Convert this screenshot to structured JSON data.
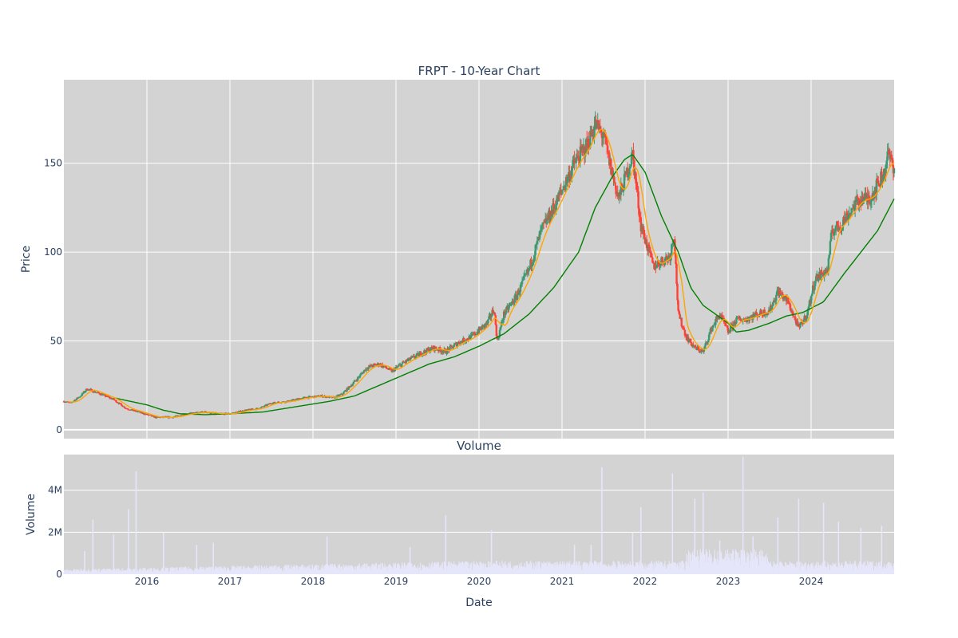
{
  "colors": {
    "plot_bg": "#d3d3d3",
    "grid": "#ffffff",
    "text": "#2a3f5f",
    "up_candle": "#3d9970",
    "down_candle": "#ff4136",
    "ma_short": "#ffa500",
    "ma_long": "#008000",
    "volume_bar": "#e6e6fa"
  },
  "chart_data": [
    {
      "type": "line",
      "chart_kind": "candlestick",
      "title": "FRPT - 10-Year Chart",
      "ylabel": "Price",
      "xlabel": "",
      "x_range": [
        2015.0,
        2025.0
      ],
      "ylim": [
        -5,
        197
      ],
      "y_ticks": [
        0,
        50,
        100,
        150
      ],
      "x_ticks": [
        "2016",
        "2017",
        "2018",
        "2019",
        "2020",
        "2021",
        "2022",
        "2023",
        "2024"
      ],
      "x_tick_values": [
        2016,
        2017,
        2018,
        2019,
        2020,
        2021,
        2022,
        2023,
        2024
      ],
      "grid": true,
      "legend": "none",
      "price_anchors": {
        "x": [
          2015.0,
          2015.08,
          2015.2,
          2015.28,
          2015.45,
          2015.6,
          2015.75,
          2015.9,
          2016.1,
          2016.3,
          2016.5,
          2016.7,
          2016.85,
          2017.0,
          2017.2,
          2017.35,
          2017.5,
          2017.7,
          2017.9,
          2018.1,
          2018.25,
          2018.35,
          2018.5,
          2018.65,
          2018.8,
          2018.95,
          2019.1,
          2019.3,
          2019.45,
          2019.6,
          2019.75,
          2019.9,
          2020.1,
          2020.18,
          2020.22,
          2020.3,
          2020.45,
          2020.6,
          2020.75,
          2020.9,
          2021.05,
          2021.15,
          2021.3,
          2021.4,
          2021.5,
          2021.6,
          2021.68,
          2021.75,
          2021.85,
          2021.95,
          2022.1,
          2022.2,
          2022.3,
          2022.35,
          2022.4,
          2022.5,
          2022.6,
          2022.7,
          2022.8,
          2022.9,
          2023.0,
          2023.1,
          2023.2,
          2023.35,
          2023.5,
          2023.6,
          2023.72,
          2023.85,
          2023.95,
          2024.05,
          2024.2,
          2024.25,
          2024.35,
          2024.5,
          2024.6,
          2024.7,
          2024.8,
          2024.88,
          2024.92,
          2025.0
        ],
        "y": [
          16,
          15,
          19,
          23,
          20,
          17,
          12,
          10,
          7,
          7,
          9,
          10,
          9,
          9,
          11,
          12,
          15,
          16,
          18,
          19,
          18,
          20,
          27,
          35,
          37,
          33,
          38,
          43,
          46,
          44,
          49,
          52,
          60,
          68,
          50,
          65,
          75,
          90,
          112,
          125,
          140,
          150,
          160,
          172,
          165,
          145,
          130,
          140,
          155,
          115,
          92,
          95,
          98,
          110,
          65,
          52,
          46,
          44,
          57,
          65,
          55,
          62,
          62,
          65,
          67,
          78,
          72,
          57,
          65,
          85,
          90,
          112,
          115,
          125,
          130,
          130,
          138,
          145,
          155,
          148
        ]
      },
      "ma_long_anchors": {
        "x": [
          2015.6,
          2015.8,
          2016.0,
          2016.2,
          2016.4,
          2016.7,
          2017.0,
          2017.4,
          2017.8,
          2018.2,
          2018.5,
          2018.8,
          2019.1,
          2019.4,
          2019.7,
          2020.0,
          2020.3,
          2020.6,
          2020.9,
          2021.2,
          2021.4,
          2021.6,
          2021.75,
          2021.85,
          2022.0,
          2022.2,
          2022.4,
          2022.55,
          2022.7,
          2022.85,
          2023.0,
          2023.1,
          2023.25,
          2023.5,
          2023.7,
          2023.9,
          2024.15,
          2024.4,
          2024.6,
          2024.8,
          2025.0
        ],
        "y": [
          18,
          16,
          14,
          11,
          9,
          8.5,
          9,
          10,
          13,
          16,
          19,
          25,
          31,
          37,
          41,
          47,
          54,
          65,
          80,
          100,
          125,
          142,
          152,
          155,
          145,
          120,
          100,
          80,
          70,
          65,
          60,
          55,
          56,
          60,
          64,
          66,
          72,
          88,
          100,
          112,
          130
        ]
      },
      "ma_short_lag_years": 0.06
    },
    {
      "type": "bar",
      "title": "Volume",
      "ylabel": "Volume",
      "xlabel": "Date",
      "x_range": [
        2015.0,
        2025.0
      ],
      "ylim": [
        0,
        5.7
      ],
      "y_unit": "M",
      "y_ticks": [
        0,
        2,
        4
      ],
      "y_tick_labels": [
        "0",
        "2M",
        "4M"
      ],
      "x_ticks": [
        "2016",
        "2017",
        "2018",
        "2019",
        "2020",
        "2021",
        "2022",
        "2023",
        "2024"
      ],
      "x_tick_values": [
        2016,
        2017,
        2018,
        2019,
        2020,
        2021,
        2022,
        2023,
        2024
      ],
      "grid": true,
      "volume_spikes": {
        "x": [
          2015.25,
          2015.35,
          2015.6,
          2015.78,
          2015.87,
          2016.2,
          2016.6,
          2016.8,
          2018.17,
          2019.17,
          2019.6,
          2020.15,
          2021.15,
          2021.35,
          2021.48,
          2021.85,
          2021.95,
          2022.33,
          2022.6,
          2022.7,
          2022.9,
          2023.18,
          2023.3,
          2023.6,
          2023.85,
          2024.15,
          2024.33,
          2024.6,
          2024.85
        ],
        "y": [
          1.1,
          2.6,
          1.9,
          3.1,
          4.9,
          2.0,
          1.4,
          1.5,
          1.8,
          1.3,
          2.8,
          2.1,
          1.4,
          1.4,
          5.1,
          2.0,
          3.2,
          4.8,
          3.6,
          3.9,
          1.6,
          5.6,
          1.8,
          2.7,
          3.6,
          3.4,
          2.5,
          2.2,
          2.3
        ]
      }
    }
  ]
}
